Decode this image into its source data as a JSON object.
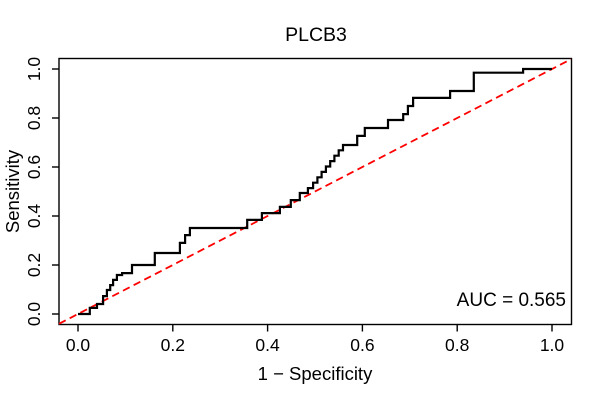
{
  "chart_data": {
    "type": "line",
    "title": "PLCB3",
    "xlabel": "1 − Specificity",
    "ylabel": "Sensitivity",
    "annotation": "AUC = 0.565",
    "auc": 0.565,
    "xlim": [
      0,
      1
    ],
    "ylim": [
      0,
      1
    ],
    "grid": false,
    "x_ticks": [
      0.0,
      0.2,
      0.4,
      0.6,
      0.8,
      1.0
    ],
    "y_ticks": [
      0.0,
      0.2,
      0.4,
      0.6,
      0.8,
      1.0
    ],
    "x_tick_labels": [
      "0.0",
      "0.2",
      "0.4",
      "0.6",
      "0.8",
      "1.0"
    ],
    "y_tick_labels": [
      "0.0",
      "0.2",
      "0.4",
      "0.6",
      "0.8",
      "1.0"
    ],
    "series": [
      {
        "name": "ROC curve",
        "style": "step-solid",
        "color": "#000000",
        "width": 2.2,
        "points": [
          [
            0.0,
            0.0
          ],
          [
            0.025,
            0.0
          ],
          [
            0.025,
            0.025
          ],
          [
            0.04,
            0.025
          ],
          [
            0.04,
            0.041
          ],
          [
            0.053,
            0.041
          ],
          [
            0.053,
            0.073
          ],
          [
            0.061,
            0.073
          ],
          [
            0.061,
            0.098
          ],
          [
            0.068,
            0.098
          ],
          [
            0.068,
            0.118
          ],
          [
            0.074,
            0.118
          ],
          [
            0.074,
            0.139
          ],
          [
            0.082,
            0.139
          ],
          [
            0.082,
            0.159
          ],
          [
            0.093,
            0.159
          ],
          [
            0.093,
            0.167
          ],
          [
            0.114,
            0.167
          ],
          [
            0.114,
            0.2
          ],
          [
            0.162,
            0.2
          ],
          [
            0.162,
            0.249
          ],
          [
            0.215,
            0.249
          ],
          [
            0.215,
            0.29
          ],
          [
            0.226,
            0.29
          ],
          [
            0.226,
            0.322
          ],
          [
            0.236,
            0.322
          ],
          [
            0.236,
            0.351
          ],
          [
            0.357,
            0.351
          ],
          [
            0.357,
            0.384
          ],
          [
            0.388,
            0.384
          ],
          [
            0.388,
            0.412
          ],
          [
            0.426,
            0.412
          ],
          [
            0.426,
            0.437
          ],
          [
            0.449,
            0.437
          ],
          [
            0.449,
            0.465
          ],
          [
            0.468,
            0.465
          ],
          [
            0.468,
            0.494
          ],
          [
            0.485,
            0.494
          ],
          [
            0.485,
            0.514
          ],
          [
            0.496,
            0.514
          ],
          [
            0.496,
            0.536
          ],
          [
            0.505,
            0.536
          ],
          [
            0.505,
            0.558
          ],
          [
            0.514,
            0.558
          ],
          [
            0.514,
            0.58
          ],
          [
            0.523,
            0.58
          ],
          [
            0.523,
            0.602
          ],
          [
            0.532,
            0.602
          ],
          [
            0.532,
            0.624
          ],
          [
            0.541,
            0.624
          ],
          [
            0.541,
            0.646
          ],
          [
            0.55,
            0.646
          ],
          [
            0.55,
            0.668
          ],
          [
            0.559,
            0.668
          ],
          [
            0.559,
            0.69
          ],
          [
            0.567,
            0.69
          ],
          [
            0.589,
            0.69
          ],
          [
            0.589,
            0.727
          ],
          [
            0.605,
            0.727
          ],
          [
            0.605,
            0.759
          ],
          [
            0.654,
            0.759
          ],
          [
            0.654,
            0.792
          ],
          [
            0.686,
            0.792
          ],
          [
            0.686,
            0.816
          ],
          [
            0.696,
            0.816
          ],
          [
            0.696,
            0.849
          ],
          [
            0.707,
            0.849
          ],
          [
            0.707,
            0.882
          ],
          [
            0.785,
            0.882
          ],
          [
            0.785,
            0.91
          ],
          [
            0.835,
            0.91
          ],
          [
            0.835,
            0.985
          ],
          [
            0.939,
            0.985
          ],
          [
            0.939,
            1.0
          ],
          [
            1.0,
            1.0
          ]
        ]
      },
      {
        "name": "chance diagonal",
        "style": "dashed",
        "color": "#FF0000",
        "width": 1.8,
        "dash": [
          7.5,
          4.5
        ],
        "points": [
          [
            -0.04,
            -0.04
          ],
          [
            1.04,
            1.04
          ]
        ]
      }
    ]
  },
  "colors": {
    "background": "#FFFFFF",
    "axis": "#000000",
    "text": "#000000"
  }
}
